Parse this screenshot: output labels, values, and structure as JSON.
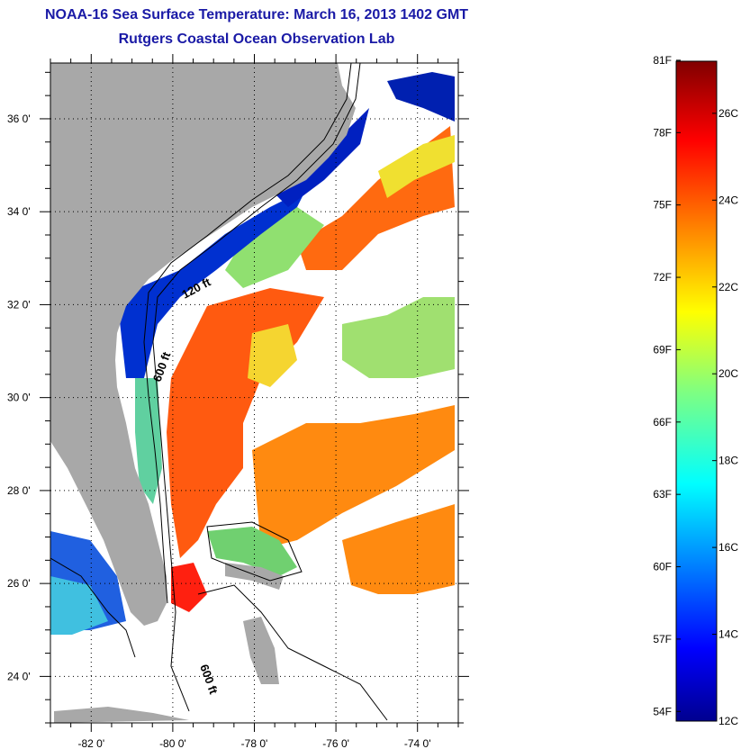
{
  "title": "NOAA-16 Sea Surface Temperature:  March 16, 2013 1402 GMT",
  "subtitle": "Rutgers Coastal Ocean Observation Lab",
  "map": {
    "lon_labels": [
      "-82 0'",
      "-80 0'",
      "-78 0'",
      "-76 0'",
      "-74 0'"
    ],
    "lon_values": [
      -82,
      -80,
      -78,
      -76,
      -74
    ],
    "lat_labels": [
      "36 0'",
      "34 0'",
      "32 0'",
      "30 0'",
      "28 0'",
      "26 0'",
      "24 0'"
    ],
    "lat_values": [
      36,
      34,
      32,
      30,
      28,
      26,
      24
    ],
    "lon_range": [
      -83,
      -73
    ],
    "lat_range": [
      23,
      37.2
    ],
    "grid": "dotted",
    "land_color": "#a8a8a8",
    "cloud_color": "#ffffff",
    "contour_labels": [
      "120 ft",
      "600 ft",
      "600 ft"
    ]
  },
  "colorbar": {
    "fahrenheit_labels": [
      "81F",
      "78F",
      "75F",
      "72F",
      "69F",
      "66F",
      "63F",
      "60F",
      "57F",
      "54F"
    ],
    "celsius_labels": [
      "26C",
      "24C",
      "22C",
      "20C",
      "18C",
      "16C",
      "14C",
      "12C"
    ],
    "range_c": [
      12,
      27.2
    ],
    "colormap": "jet",
    "colors": [
      "#00008f",
      "#0000ff",
      "#0080ff",
      "#00ffff",
      "#80ff80",
      "#ffff00",
      "#ff8000",
      "#ff0000",
      "#800000"
    ]
  }
}
